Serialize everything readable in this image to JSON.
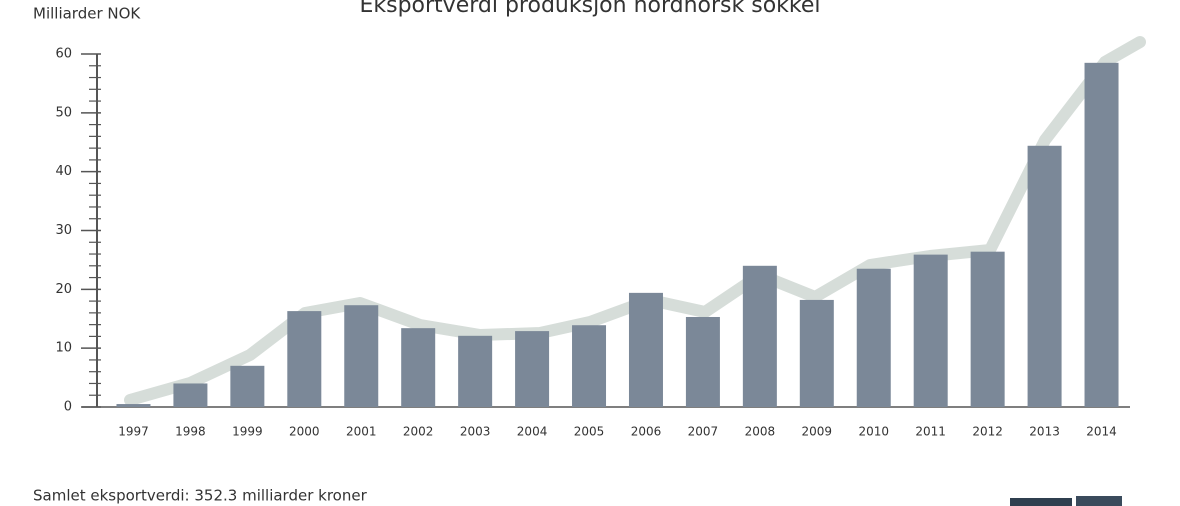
{
  "chart_data": {
    "type": "bar",
    "title": "Eksportverdi produksjon nordnorsk sokkel",
    "y_label": "Milliarder NOK",
    "footer": "Samlet eksportverdi: 352.3 milliarder kroner",
    "categories": [
      "1997",
      "1998",
      "1999",
      "2000",
      "2001",
      "2002",
      "2003",
      "2004",
      "2005",
      "2006",
      "2007",
      "2008",
      "2009",
      "2010",
      "2011",
      "2012",
      "2013",
      "2014"
    ],
    "values": [
      0.5,
      4,
      7,
      16.3,
      17.3,
      13.4,
      12.1,
      12.9,
      13.9,
      19.4,
      15.3,
      24,
      18.2,
      23.5,
      25.9,
      26.4,
      44.4,
      58.5
    ],
    "color": "#7b8898",
    "ylim": [
      0,
      60
    ],
    "yticks": [
      0,
      10,
      20,
      30,
      40,
      50,
      60
    ]
  }
}
